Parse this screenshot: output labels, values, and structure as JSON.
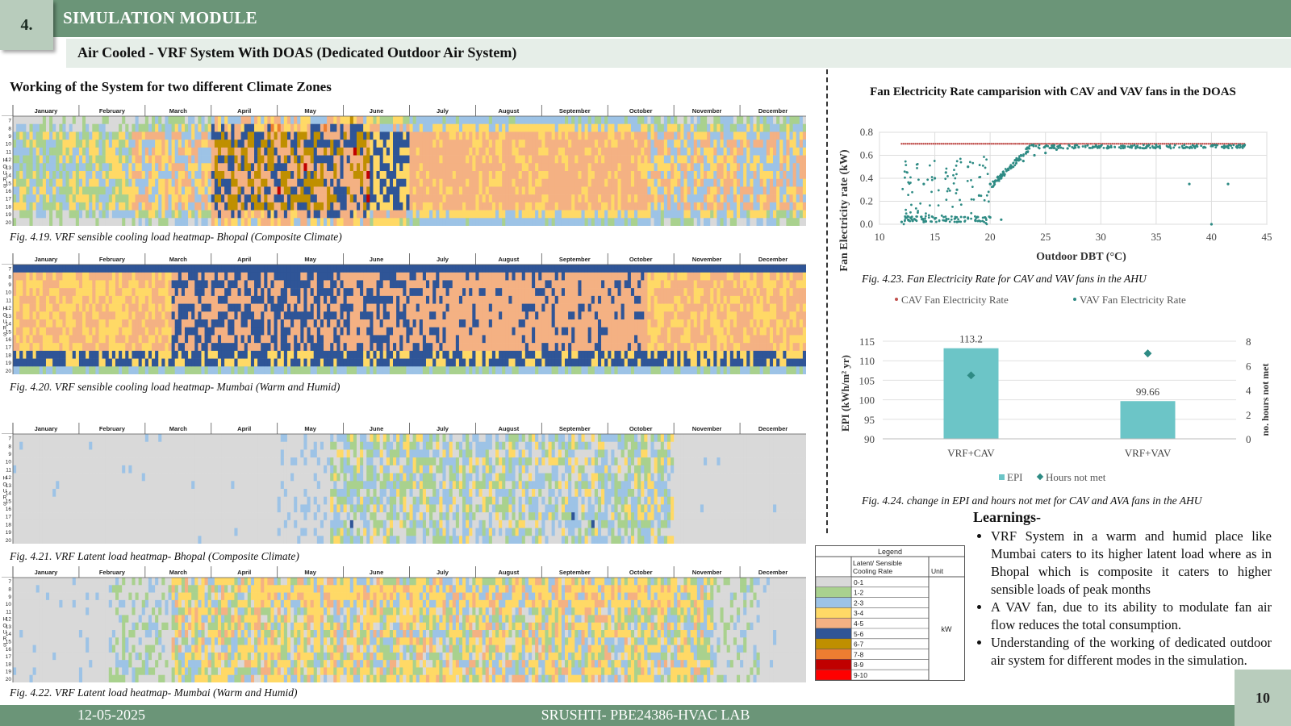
{
  "header": {
    "number": "4.",
    "title": "SIMULATION MODULE",
    "subtitle": "Air Cooled - VRF System With DOAS (Dedicated Outdoor Air System)"
  },
  "section_title": "Working of the System for two different Climate Zones",
  "heatmap": {
    "months": [
      "January",
      "February",
      "March",
      "April",
      "May",
      "June",
      "July",
      "August",
      "September",
      "October",
      "November",
      "December"
    ],
    "hours": [
      "7",
      "8",
      "9",
      "10",
      "11",
      "12",
      "13",
      "14",
      "15",
      "16",
      "17",
      "18",
      "19",
      "20"
    ],
    "hours_label": "HOURS"
  },
  "captions": {
    "fig419": "Fig. 4.19. VRF sensible cooling load heatmap- Bhopal (Composite  Climate)",
    "fig420": "Fig. 4.20. VRF sensible cooling load heatmap- Mumbai (Warm and Humid)",
    "fig421": "Fig. 4.21. VRF  Latent load heatmap- Bhopal (Composite  Climate)",
    "fig422": "Fig. 4.22. VRF  Latent  load heatmap- Mumbai (Warm and Humid)",
    "fig423": "Fig. 4.23. Fan Electricity Rate for  CAV and VAV fans in the AHU",
    "fig424": "Fig. 4.24. change in EPI and hours not met  for CAV and AVA fans in the AHU"
  },
  "legend": {
    "title": "Legend",
    "col1": "Latent/ Sensible Cooling Rate",
    "col2": "Unit",
    "unit": "kW",
    "items": [
      {
        "label": "0-1",
        "color": "#d9d9d9"
      },
      {
        "label": "1-2",
        "color": "#a9d18e"
      },
      {
        "label": "2-3",
        "color": "#9dc3e6"
      },
      {
        "label": "3-4",
        "color": "#ffd966"
      },
      {
        "label": "4-5",
        "color": "#f4b183"
      },
      {
        "label": "5-6",
        "color": "#2f5597"
      },
      {
        "label": "6-7",
        "color": "#bf8f00"
      },
      {
        "label": "7-8",
        "color": "#ed7d31"
      },
      {
        "label": "8-9",
        "color": "#c00000"
      },
      {
        "label": "9-10",
        "color": "#ff0000"
      }
    ]
  },
  "learnings": {
    "title": "Learnings-",
    "items": [
      "VRF System in a warm and humid place like Mumbai caters to its higher latent load where as in Bhopal which is composite it caters to higher sensible loads of peak months",
      "A VAV fan, due to its ability to modulate fan air flow reduces the total consumption.",
      "Understanding of the working of dedicated outdoor air system for different modes in the simulation."
    ]
  },
  "chart_data": [
    {
      "type": "scatter",
      "title": "Fan Electricity Rate camparision  with CAV and VAV fans in the DOAS",
      "xlabel": "Outdoor  DBT (°C)",
      "ylabel": "Fan Electricity rate (kW)",
      "xlim": [
        10,
        45
      ],
      "ylim": [
        0,
        0.8
      ],
      "xticks": [
        "10",
        "15",
        "20",
        "25",
        "30",
        "35",
        "40",
        "45"
      ],
      "yticks": [
        "0.0",
        "0.2",
        "0.4",
        "0.6",
        "0.8"
      ],
      "series": [
        {
          "name": "CAV Fan Electricity Rate",
          "color": "#c0504d",
          "x_range": [
            12,
            43
          ],
          "y": 0.7
        },
        {
          "name": "VAV Fan Electricity Rate",
          "color": "#2e8b84",
          "points": [
            [
              12,
              0.02
            ],
            [
              13,
              0.03
            ],
            [
              14,
              0.02
            ],
            [
              15,
              0.05
            ],
            [
              16,
              0.03
            ],
            [
              17,
              0.02
            ],
            [
              18,
              0.05
            ],
            [
              19,
              0.03
            ],
            [
              20,
              0.06
            ],
            [
              21,
              0.04
            ],
            [
              14,
              0.35
            ],
            [
              15,
              0.4
            ],
            [
              16,
              0.45
            ],
            [
              17,
              0.3
            ],
            [
              18,
              0.5
            ],
            [
              19,
              0.25
            ],
            [
              20,
              0.35
            ],
            [
              21,
              0.4
            ],
            [
              22,
              0.5
            ],
            [
              23,
              0.55
            ],
            [
              24,
              0.6
            ],
            [
              25,
              0.62
            ],
            [
              26,
              0.65
            ],
            [
              27,
              0.66
            ],
            [
              28,
              0.67
            ],
            [
              30,
              0.68
            ],
            [
              32,
              0.68
            ],
            [
              35,
              0.69
            ],
            [
              38,
              0.35
            ],
            [
              40,
              0.0
            ],
            [
              41.5,
              0.35
            ],
            [
              43,
              0.69
            ]
          ]
        }
      ],
      "legend": "bottom"
    },
    {
      "type": "bar",
      "categories": [
        "VRF+CAV",
        "VRF+VAV"
      ],
      "series": [
        {
          "name": "EPI",
          "values": [
            113.2,
            99.66
          ],
          "color": "#6cc5c7",
          "data_labels": [
            "113.2",
            "99.66"
          ]
        },
        {
          "name": "Hours not met",
          "values": [
            5.2,
            7
          ],
          "color": "#2e8b84"
        }
      ],
      "ylabel": "EPI  (kWh/m² yr)",
      "y2label": "no. hours not met",
      "ylim": [
        90,
        115
      ],
      "y2lim": [
        0,
        8
      ],
      "yticks": [
        "90",
        "95",
        "100",
        "105",
        "110",
        "115"
      ],
      "y2ticks": [
        "0",
        "2",
        "4",
        "6",
        "8"
      ],
      "legend": "bottom"
    }
  ],
  "footer": {
    "date": "12-05-2025",
    "lab": "SRUSHTI- PBE24386-HVAC  LAB",
    "page": "10"
  }
}
